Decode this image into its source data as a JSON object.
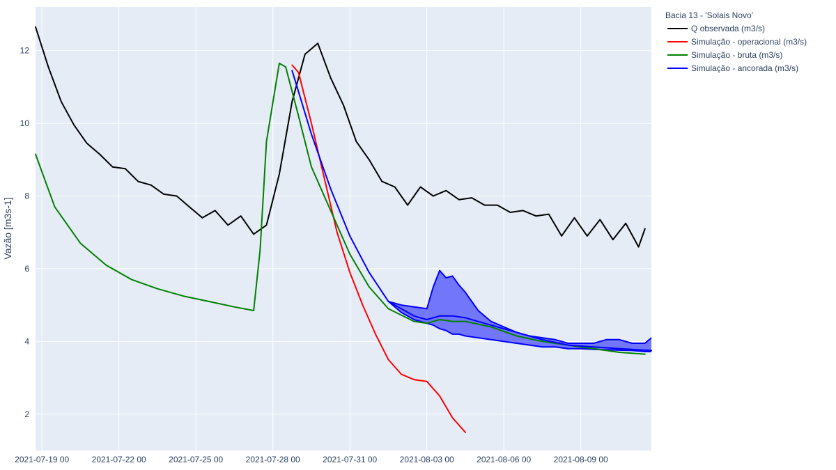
{
  "chart_data": {
    "type": "line",
    "title": "",
    "xlabel": "",
    "ylabel": "Vazão [m3s-1]",
    "legend_title": "Bacia 13 - 'Solais Novo'",
    "legend_position": "right",
    "grid": true,
    "ylim": [
      1,
      13.2
    ],
    "yticks": [
      2,
      4,
      6,
      8,
      10,
      12
    ],
    "xlim": [
      "2021-07-18 18:00",
      "2021-08-11 18:00"
    ],
    "xticks": [
      "2021-07-19 00",
      "2021-07-22 00",
      "2021-07-25 00",
      "2021-07-28 00",
      "2021-07-31 00",
      "2021-08-03 00",
      "2021-08-06 00",
      "2021-08-09 00"
    ],
    "colors": {
      "plot_bg": "#e5ecf6",
      "grid": "#ffffff",
      "band_fill": "rgba(0,0,255,0.5)"
    },
    "series": [
      {
        "name": "Q observada (m3/s)",
        "color": "#000000",
        "x": [
          "2021-07-18 18:00",
          "2021-07-19 06:00",
          "2021-07-19 18:00",
          "2021-07-20 06:00",
          "2021-07-20 18:00",
          "2021-07-21 06:00",
          "2021-07-21 18:00",
          "2021-07-22 06:00",
          "2021-07-22 18:00",
          "2021-07-23 06:00",
          "2021-07-23 18:00",
          "2021-07-24 06:00",
          "2021-07-24 18:00",
          "2021-07-25 06:00",
          "2021-07-25 18:00",
          "2021-07-26 06:00",
          "2021-07-26 18:00",
          "2021-07-27 06:00",
          "2021-07-27 18:00",
          "2021-07-28 06:00",
          "2021-07-28 18:00",
          "2021-07-29 06:00",
          "2021-07-29 18:00",
          "2021-07-30 06:00",
          "2021-07-30 18:00",
          "2021-07-31 06:00",
          "2021-07-31 18:00",
          "2021-08-01 06:00",
          "2021-08-01 18:00",
          "2021-08-02 06:00",
          "2021-08-02 18:00",
          "2021-08-03 06:00",
          "2021-08-03 18:00",
          "2021-08-04 06:00",
          "2021-08-04 18:00",
          "2021-08-05 06:00",
          "2021-08-05 18:00",
          "2021-08-06 06:00",
          "2021-08-06 18:00",
          "2021-08-07 06:00",
          "2021-08-07 18:00",
          "2021-08-08 06:00",
          "2021-08-08 18:00",
          "2021-08-09 06:00",
          "2021-08-09 18:00",
          "2021-08-10 06:00",
          "2021-08-10 18:00",
          "2021-08-11 06:00",
          "2021-08-11 12:00"
        ],
        "y": [
          12.65,
          11.55,
          10.6,
          9.95,
          9.45,
          9.15,
          8.8,
          8.75,
          8.4,
          8.3,
          8.05,
          8.0,
          7.7,
          7.4,
          7.6,
          7.2,
          7.45,
          6.95,
          7.2,
          8.6,
          10.6,
          11.9,
          12.2,
          11.25,
          10.5,
          9.5,
          9.0,
          8.4,
          8.25,
          7.75,
          8.25,
          8.0,
          8.15,
          7.9,
          7.95,
          7.75,
          7.75,
          7.55,
          7.6,
          7.45,
          7.5,
          6.9,
          7.4,
          6.9,
          7.35,
          6.8,
          7.25,
          6.6,
          7.1
        ]
      },
      {
        "name": "Simulação - operacional (m3/s)",
        "color": "#ff0000",
        "x": [
          "2021-07-28 18:00",
          "2021-07-29 00:00",
          "2021-07-29 12:00",
          "2021-07-30 00:00",
          "2021-07-30 12:00",
          "2021-07-31 00:00",
          "2021-07-31 12:00",
          "2021-08-01 00:00",
          "2021-08-01 12:00",
          "2021-08-02 00:00",
          "2021-08-02 12:00",
          "2021-08-03 00:00",
          "2021-08-03 12:00",
          "2021-08-04 00:00",
          "2021-08-04 12:00"
        ],
        "y": [
          11.6,
          11.4,
          10.0,
          8.5,
          7.0,
          5.9,
          5.0,
          4.2,
          3.5,
          3.1,
          2.95,
          2.9,
          2.5,
          1.9,
          1.5
        ]
      },
      {
        "name": "Simulação - bruta (m3/s)",
        "color": "#008000",
        "x": [
          "2021-07-18 18:00",
          "2021-07-19 12:00",
          "2021-07-20 12:00",
          "2021-07-21 12:00",
          "2021-07-22 12:00",
          "2021-07-23 12:00",
          "2021-07-24 12:00",
          "2021-07-25 12:00",
          "2021-07-26 12:00",
          "2021-07-27 06:00",
          "2021-07-27 12:00",
          "2021-07-27 18:00",
          "2021-07-28 06:00",
          "2021-07-28 12:00",
          "2021-07-29 00:00",
          "2021-07-29 12:00",
          "2021-07-30 06:00",
          "2021-07-31 00:00",
          "2021-07-31 18:00",
          "2021-08-01 12:00",
          "2021-08-02 12:00",
          "2021-08-03 00:00",
          "2021-08-03 12:00",
          "2021-08-04 00:00",
          "2021-08-04 12:00",
          "2021-08-05 12:00",
          "2021-08-06 12:00",
          "2021-08-07 12:00",
          "2021-08-08 12:00",
          "2021-08-09 12:00",
          "2021-08-10 12:00",
          "2021-08-11 12:00"
        ],
        "y": [
          9.15,
          7.7,
          6.7,
          6.1,
          5.7,
          5.45,
          5.25,
          5.1,
          4.95,
          4.85,
          6.5,
          9.5,
          11.65,
          11.55,
          10.2,
          8.8,
          7.6,
          6.4,
          5.5,
          4.9,
          4.55,
          4.5,
          4.6,
          4.55,
          4.55,
          4.4,
          4.15,
          4.0,
          3.9,
          3.8,
          3.7,
          3.65
        ]
      },
      {
        "name": "Simulação - ancorada (m3/s)",
        "color": "#0000ff",
        "x": [
          "2021-07-28 18:00",
          "2021-07-29 12:00",
          "2021-07-30 06:00",
          "2021-07-31 00:00",
          "2021-07-31 18:00",
          "2021-08-01 12:00",
          "2021-08-02 12:00",
          "2021-08-03 00:00",
          "2021-08-03 12:00",
          "2021-08-04 00:00",
          "2021-08-04 12:00",
          "2021-08-05 12:00",
          "2021-08-06 12:00",
          "2021-08-07 12:00",
          "2021-08-08 12:00",
          "2021-08-09 12:00",
          "2021-08-10 12:00",
          "2021-08-11 18:00"
        ],
        "y": [
          11.45,
          9.7,
          8.2,
          6.9,
          5.9,
          5.1,
          4.7,
          4.6,
          4.7,
          4.7,
          4.65,
          4.45,
          4.25,
          4.05,
          3.9,
          3.85,
          3.8,
          3.75
        ]
      }
    ],
    "band": {
      "name": "Simulação - ancorada (m3/s)",
      "x": [
        "2021-08-01 12:00",
        "2021-08-02 00:00",
        "2021-08-02 12:00",
        "2021-08-03 00:00",
        "2021-08-03 06:00",
        "2021-08-03 12:00",
        "2021-08-03 18:00",
        "2021-08-04 00:00",
        "2021-08-04 06:00",
        "2021-08-04 12:00",
        "2021-08-05 00:00",
        "2021-08-05 12:00",
        "2021-08-06 00:00",
        "2021-08-06 12:00",
        "2021-08-07 00:00",
        "2021-08-07 12:00",
        "2021-08-08 00:00",
        "2021-08-08 12:00",
        "2021-08-09 00:00",
        "2021-08-09 12:00",
        "2021-08-10 00:00",
        "2021-08-10 12:00",
        "2021-08-11 00:00",
        "2021-08-11 12:00",
        "2021-08-11 18:00"
      ],
      "upper": [
        5.1,
        5.0,
        4.95,
        4.9,
        5.5,
        5.95,
        5.75,
        5.8,
        5.55,
        5.35,
        4.85,
        4.55,
        4.4,
        4.25,
        4.15,
        4.1,
        4.05,
        3.95,
        3.95,
        3.95,
        4.05,
        4.05,
        3.95,
        3.95,
        4.1
      ],
      "lower": [
        5.1,
        4.8,
        4.6,
        4.5,
        4.45,
        4.35,
        4.3,
        4.2,
        4.2,
        4.15,
        4.1,
        4.05,
        4.0,
        3.95,
        3.9,
        3.85,
        3.85,
        3.8,
        3.8,
        3.78,
        3.77,
        3.76,
        3.75,
        3.72,
        3.72
      ]
    }
  }
}
